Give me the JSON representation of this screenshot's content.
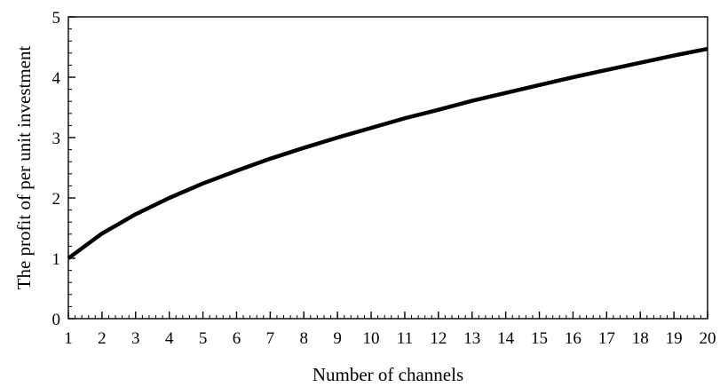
{
  "chart_data": {
    "type": "line",
    "title": "",
    "xlabel": "Number of channels",
    "ylabel": "The profit of per unit investment",
    "xlim": [
      1,
      20
    ],
    "ylim": [
      0,
      5
    ],
    "x_ticks": [
      1,
      2,
      3,
      4,
      5,
      6,
      7,
      8,
      9,
      10,
      11,
      12,
      13,
      14,
      15,
      16,
      17,
      18,
      19,
      20
    ],
    "y_ticks": [
      0,
      1,
      2,
      3,
      4,
      5
    ],
    "x_minor_step": 0.2,
    "y_minor_step": 0.2,
    "grid": false,
    "legend": "none",
    "line_color": "#000000",
    "series": [
      {
        "x": [
          1,
          2,
          3,
          4,
          5,
          6,
          7,
          8,
          9,
          10,
          11,
          12,
          13,
          14,
          15,
          16,
          17,
          18,
          19,
          20
        ],
        "values": [
          1.0,
          1.41,
          1.73,
          2.0,
          2.24,
          2.45,
          2.65,
          2.83,
          3.0,
          3.16,
          3.32,
          3.46,
          3.61,
          3.74,
          3.87,
          4.0,
          4.12,
          4.24,
          4.36,
          4.47
        ]
      }
    ]
  }
}
